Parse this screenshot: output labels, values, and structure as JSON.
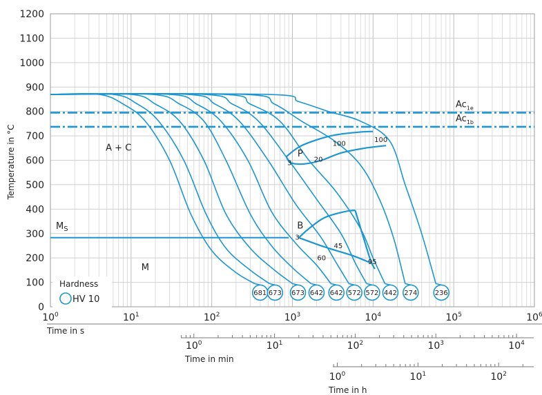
{
  "chart_data": {
    "type": "line",
    "title": "",
    "ylabel": "Temperature in °C",
    "ylim": [
      0,
      1200
    ],
    "yticks": [
      "0",
      "100",
      "200",
      "300",
      "400",
      "500",
      "600",
      "700",
      "800",
      "900",
      "1000",
      "1100",
      "1200"
    ],
    "x_scale": "log",
    "xlim": [
      1,
      1000000
    ],
    "axis_s": {
      "label": "Time in s",
      "ticks": [
        {
          "base": "10",
          "exp": "0"
        },
        {
          "base": "10",
          "exp": "1"
        },
        {
          "base": "10",
          "exp": "2"
        },
        {
          "base": "10",
          "exp": "3"
        },
        {
          "base": "10",
          "exp": "4"
        },
        {
          "base": "10",
          "exp": "5"
        },
        {
          "base": "10",
          "exp": "6"
        }
      ]
    },
    "axis_min": {
      "label": "Time in min",
      "ticks": [
        {
          "base": "10",
          "exp": "0"
        },
        {
          "base": "10",
          "exp": "1"
        },
        {
          "base": "10",
          "exp": "2"
        },
        {
          "base": "10",
          "exp": "3"
        },
        {
          "base": "10",
          "exp": "4"
        }
      ]
    },
    "axis_h": {
      "label": "Time in h",
      "ticks": [
        {
          "base": "10",
          "exp": "0"
        },
        {
          "base": "10",
          "exp": "1"
        },
        {
          "base": "10",
          "exp": "2"
        }
      ]
    },
    "reference_lines": [
      {
        "label": "Ac",
        "sub": "1e",
        "y": 795
      },
      {
        "label": "Ac",
        "sub": "1b",
        "y": 737
      }
    ],
    "ms": {
      "label": "M",
      "sub": "S",
      "y": 283,
      "x_start": 1,
      "x_end": 900
    },
    "austenitizing_temperature": 870,
    "cooling_curves": [
      {
        "hardness": "681",
        "points": [
          [
            4,
            870
          ],
          [
            8,
            830
          ],
          [
            15,
            760
          ],
          [
            30,
            600
          ],
          [
            55,
            380
          ],
          [
            100,
            230
          ],
          [
            200,
            140
          ],
          [
            340,
            95
          ]
        ]
      },
      {
        "hardness": "673",
        "points": [
          [
            6,
            870
          ],
          [
            12,
            830
          ],
          [
            22,
            760
          ],
          [
            45,
            600
          ],
          [
            85,
            380
          ],
          [
            150,
            240
          ],
          [
            300,
            150
          ],
          [
            520,
            95
          ]
        ]
      },
      {
        "hardness": "673",
        "points": [
          [
            10,
            870
          ],
          [
            20,
            830
          ],
          [
            40,
            760
          ],
          [
            80,
            600
          ],
          [
            150,
            380
          ],
          [
            300,
            240
          ],
          [
            600,
            150
          ],
          [
            1000,
            95
          ]
        ]
      },
      {
        "hardness": "642",
        "points": [
          [
            18,
            870
          ],
          [
            40,
            830
          ],
          [
            80,
            760
          ],
          [
            150,
            600
          ],
          [
            300,
            380
          ],
          [
            550,
            250
          ],
          [
            1000,
            160
          ],
          [
            1700,
            95
          ]
        ]
      },
      {
        "hardness": "642",
        "points": [
          [
            30,
            870
          ],
          [
            65,
            830
          ],
          [
            130,
            760
          ],
          [
            280,
            600
          ],
          [
            550,
            390
          ],
          [
            1100,
            260
          ],
          [
            2000,
            170
          ],
          [
            3000,
            95
          ]
        ]
      },
      {
        "hardness": "572",
        "points": [
          [
            50,
            870
          ],
          [
            110,
            830
          ],
          [
            220,
            760
          ],
          [
            500,
            600
          ],
          [
            1100,
            420
          ],
          [
            2200,
            290
          ],
          [
            3500,
            180
          ],
          [
            5000,
            95
          ]
        ]
      },
      {
        "hardness": "572",
        "points": [
          [
            80,
            870
          ],
          [
            180,
            830
          ],
          [
            380,
            760
          ],
          [
            900,
            600
          ],
          [
            2000,
            440
          ],
          [
            4000,
            300
          ],
          [
            6000,
            180
          ],
          [
            8300,
            95
          ]
        ]
      },
      {
        "hardness": "442",
        "points": [
          [
            140,
            870
          ],
          [
            300,
            830
          ],
          [
            700,
            760
          ],
          [
            1600,
            600
          ],
          [
            3500,
            470
          ],
          [
            7000,
            320
          ],
          [
            10000,
            200
          ],
          [
            14000,
            95
          ]
        ]
      },
      {
        "hardness": "274",
        "points": [
          [
            250,
            870
          ],
          [
            600,
            830
          ],
          [
            1300,
            760
          ],
          [
            3300,
            680
          ],
          [
            7000,
            580
          ],
          [
            12000,
            440
          ],
          [
            18000,
            280
          ],
          [
            25000,
            95
          ]
        ]
      },
      {
        "hardness": "236",
        "points": [
          [
            500,
            870
          ],
          [
            1200,
            840
          ],
          [
            2800,
            800
          ],
          [
            7000,
            760
          ],
          [
            16000,
            680
          ],
          [
            25000,
            500
          ],
          [
            40000,
            300
          ],
          [
            60000,
            95
          ]
        ]
      }
    ],
    "regions": [
      {
        "label": "A + C",
        "x": 7,
        "y": 640
      },
      {
        "label": "M",
        "x": 15,
        "y": 150
      },
      {
        "label": "P",
        "x": 1250,
        "y": 615
      },
      {
        "label": "B",
        "x": 1250,
        "y": 320
      }
    ],
    "phase_percent_labels": [
      {
        "text": "3",
        "x": 920,
        "y": 580
      },
      {
        "text": "20",
        "x": 2100,
        "y": 595
      },
      {
        "text": "100",
        "x": 3800,
        "y": 660
      },
      {
        "text": "100",
        "x": 12500,
        "y": 675
      },
      {
        "text": "3",
        "x": 1150,
        "y": 275
      },
      {
        "text": "45",
        "x": 3700,
        "y": 240
      },
      {
        "text": "60",
        "x": 2300,
        "y": 190
      },
      {
        "text": "95",
        "x": 9800,
        "y": 175
      }
    ],
    "pearlite_region": {
      "upper": [
        [
          840,
          615
        ],
        [
          1300,
          660
        ],
        [
          3000,
          700
        ],
        [
          6500,
          715
        ],
        [
          10000,
          718
        ]
      ],
      "lower": [
        [
          840,
          615
        ],
        [
          950,
          590
        ],
        [
          1400,
          585
        ],
        [
          2300,
          600
        ],
        [
          4000,
          630
        ],
        [
          8000,
          650
        ],
        [
          14500,
          660
        ]
      ]
    },
    "bainite_region": {
      "upper": [
        [
          1200,
          283
        ],
        [
          1600,
          320
        ],
        [
          2500,
          365
        ],
        [
          4500,
          390
        ],
        [
          6000,
          395
        ]
      ],
      "lower": [
        [
          1200,
          283
        ],
        [
          2500,
          245
        ],
        [
          5500,
          210
        ],
        [
          9300,
          180
        ]
      ],
      "right": [
        [
          6000,
          395
        ],
        [
          7500,
          290
        ],
        [
          9300,
          190
        ],
        [
          10500,
          155
        ]
      ]
    },
    "legend": {
      "title": "Hardness",
      "entry": "HV 10"
    }
  }
}
